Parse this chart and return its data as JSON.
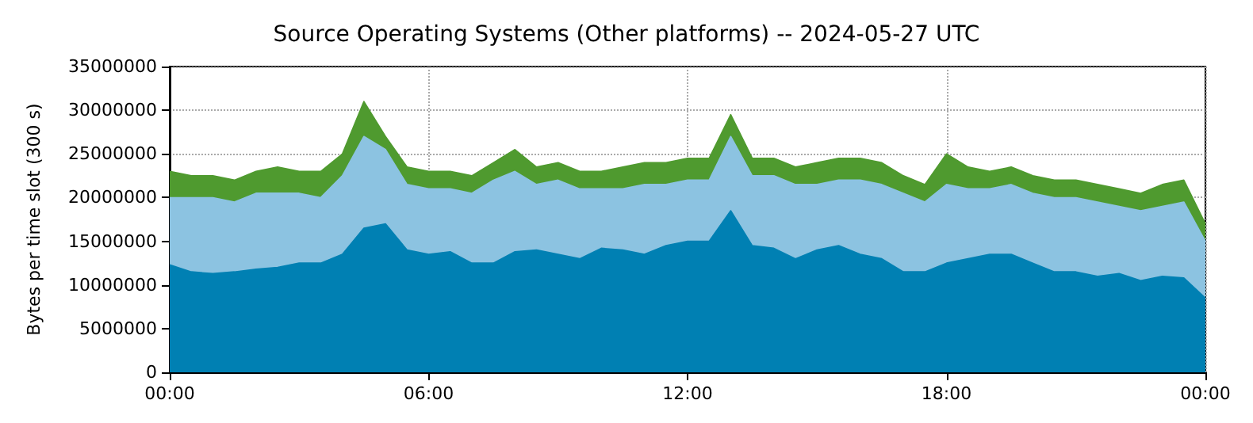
{
  "chart_data": {
    "type": "area",
    "stacked": true,
    "title": "Source Operating Systems (Other platforms) -- 2024-05-27 UTC",
    "ylabel": "Bytes per time slot (300 s)",
    "x": [
      0,
      0.5,
      1,
      1.5,
      2,
      2.5,
      3,
      3.5,
      4,
      4.5,
      5,
      5.5,
      6,
      6.5,
      7,
      7.5,
      8,
      8.5,
      9,
      9.5,
      10,
      10.5,
      11,
      11.5,
      12,
      12.5,
      13,
      13.5,
      14,
      14.5,
      15,
      15.5,
      16,
      16.5,
      17,
      17.5,
      18,
      18.5,
      19,
      19.5,
      20,
      20.5,
      21,
      21.5,
      22,
      22.5,
      23,
      23.5,
      24
    ],
    "series": [
      {
        "color": "#0080b3",
        "values": [
          12300000,
          11500000,
          11300000,
          11500000,
          11800000,
          12000000,
          12500000,
          12500000,
          13500000,
          16500000,
          17000000,
          14000000,
          13500000,
          13800000,
          12500000,
          12500000,
          13800000,
          14000000,
          13500000,
          13000000,
          14200000,
          14000000,
          13500000,
          14500000,
          15000000,
          15000000,
          18500000,
          14500000,
          14200000,
          13000000,
          14000000,
          14500000,
          13500000,
          13000000,
          11500000,
          11500000,
          12500000,
          13000000,
          13500000,
          13500000,
          12500000,
          11500000,
          11500000,
          11000000,
          11300000,
          10500000,
          11000000,
          10800000,
          8500000
        ]
      },
      {
        "color": "#8cc3e1",
        "values": [
          7700000,
          8500000,
          8700000,
          8000000,
          8700000,
          8500000,
          8000000,
          7500000,
          9000000,
          10500000,
          8500000,
          7500000,
          7500000,
          7200000,
          8000000,
          9500000,
          9200000,
          7500000,
          8500000,
          8000000,
          6800000,
          7000000,
          8000000,
          7000000,
          7000000,
          7000000,
          8500000,
          8000000,
          8300000,
          8500000,
          7500000,
          7500000,
          8500000,
          8500000,
          9000000,
          8000000,
          9000000,
          8000000,
          7500000,
          8000000,
          8000000,
          8500000,
          8500000,
          8500000,
          7700000,
          8000000,
          8000000,
          8700000,
          6500000
        ]
      },
      {
        "color": "#4f9a2f",
        "values": [
          3000000,
          2500000,
          2500000,
          2500000,
          2500000,
          3000000,
          2500000,
          3000000,
          2500000,
          4000000,
          1500000,
          2000000,
          2000000,
          2000000,
          2000000,
          2000000,
          2500000,
          2000000,
          2000000,
          2000000,
          2000000,
          2500000,
          2500000,
          2500000,
          2500000,
          2500000,
          2500000,
          2000000,
          2000000,
          2000000,
          2500000,
          2500000,
          2500000,
          2500000,
          2000000,
          2000000,
          3500000,
          2500000,
          2000000,
          2000000,
          2000000,
          2000000,
          2000000,
          2000000,
          2000000,
          2000000,
          2500000,
          2500000,
          2000000
        ]
      }
    ],
    "xlim": [
      0,
      24
    ],
    "xticks": [
      {
        "value": 0,
        "label": "00:00"
      },
      {
        "value": 6,
        "label": "06:00"
      },
      {
        "value": 12,
        "label": "12:00"
      },
      {
        "value": 18,
        "label": "18:00"
      },
      {
        "value": 24,
        "label": "00:00"
      }
    ],
    "ylim": [
      0,
      35000000
    ],
    "yticks": [
      0,
      5000000,
      10000000,
      15000000,
      20000000,
      25000000,
      30000000,
      35000000
    ],
    "grid": true,
    "line_style": "solid"
  }
}
